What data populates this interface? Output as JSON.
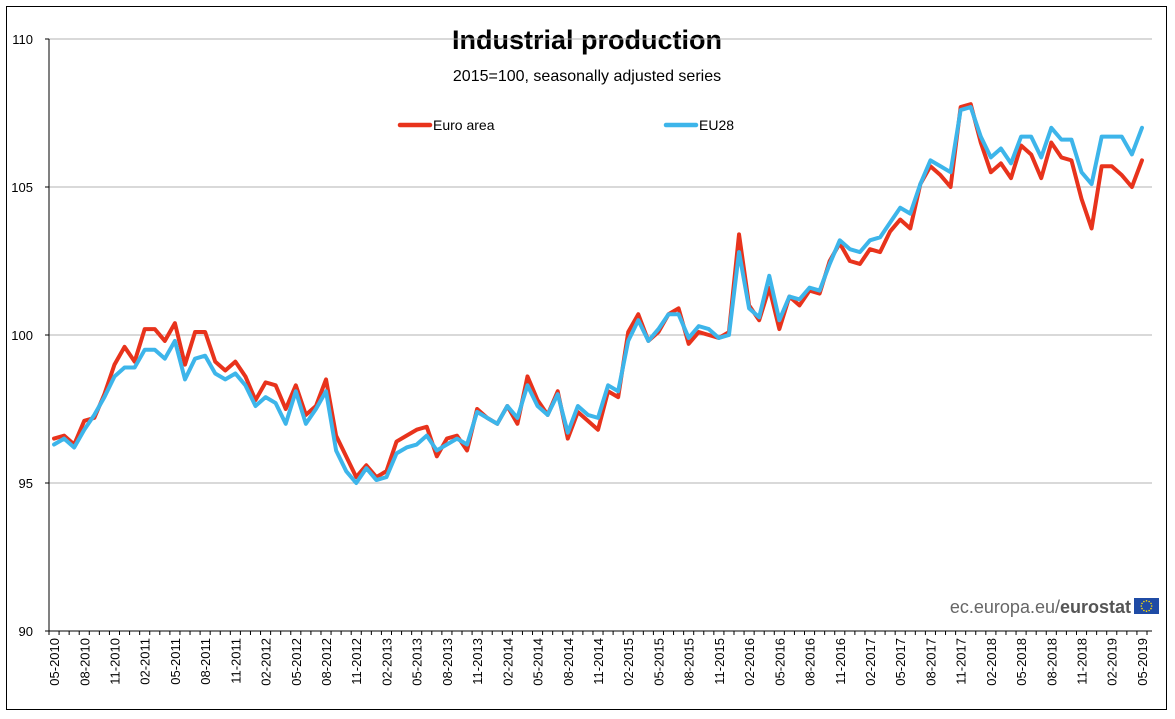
{
  "chart_data": {
    "type": "line",
    "title": "Industrial production",
    "subtitle": "2015=100, seasonally adjusted series",
    "xlabel": "",
    "ylabel": "",
    "ylim": [
      90,
      110
    ],
    "yticks": [
      90,
      95,
      100,
      105,
      110
    ],
    "grid": "horizontal",
    "legend_placement": "top",
    "x_tick_labels": [
      "05-2010",
      "08-2010",
      "11-2010",
      "02-2011",
      "05-2011",
      "08-2011",
      "11-2011",
      "02-2012",
      "05-2012",
      "08-2012",
      "11-2012",
      "02-2013",
      "05-2013",
      "08-2013",
      "11-2013",
      "02-2014",
      "05-2014",
      "08-2014",
      "11-2014",
      "02-2015",
      "05-2015",
      "08-2015",
      "11-2015",
      "02-2016",
      "05-2016",
      "08-2016",
      "11-2016",
      "02-2017",
      "05-2017",
      "08-2017",
      "11-2017",
      "02-2018",
      "05-2018",
      "08-2018",
      "11-2018",
      "02-2019",
      "05-2019"
    ],
    "x_start": "05-2010",
    "series": [
      {
        "name": "Euro area",
        "color": "#e8331c",
        "values": [
          96.5,
          96.6,
          96.3,
          97.1,
          97.2,
          98.0,
          99.0,
          99.6,
          99.1,
          100.2,
          100.2,
          99.8,
          100.4,
          99.0,
          100.1,
          100.1,
          99.1,
          98.8,
          99.1,
          98.6,
          97.8,
          98.4,
          98.3,
          97.5,
          98.3,
          97.3,
          97.6,
          98.5,
          96.6,
          95.9,
          95.2,
          95.6,
          95.2,
          95.4,
          96.4,
          96.6,
          96.8,
          96.9,
          95.9,
          96.5,
          96.6,
          96.1,
          97.5,
          97.2,
          97.0,
          97.6,
          97.0,
          98.6,
          97.8,
          97.3,
          98.1,
          96.5,
          97.4,
          97.1,
          96.8,
          98.1,
          97.9,
          100.1,
          100.7,
          99.8,
          100.1,
          100.7,
          100.9,
          99.7,
          100.1,
          100.0,
          99.9,
          100.1,
          103.4,
          101.0,
          100.5,
          101.6,
          100.2,
          101.3,
          101.0,
          101.5,
          101.4,
          102.5,
          103.1,
          102.5,
          102.4,
          102.9,
          102.8,
          103.5,
          103.9,
          103.6,
          105.1,
          105.7,
          105.4,
          105.0,
          107.7,
          107.8,
          106.5,
          105.5,
          105.8,
          105.3,
          106.4,
          106.1,
          105.3,
          106.5,
          106.0,
          105.9,
          104.6,
          103.6,
          105.7,
          105.7,
          105.4,
          105.0,
          105.9
        ]
      },
      {
        "name": "EU28",
        "color": "#3db5ea",
        "values": [
          96.3,
          96.5,
          96.2,
          96.8,
          97.3,
          97.9,
          98.6,
          98.9,
          98.9,
          99.5,
          99.5,
          99.2,
          99.8,
          98.5,
          99.2,
          99.3,
          98.7,
          98.5,
          98.7,
          98.3,
          97.6,
          97.9,
          97.7,
          97.0,
          98.1,
          97.0,
          97.5,
          98.1,
          96.1,
          95.4,
          95.0,
          95.5,
          95.1,
          95.2,
          96.0,
          96.2,
          96.3,
          96.6,
          96.1,
          96.3,
          96.5,
          96.3,
          97.4,
          97.2,
          97.0,
          97.6,
          97.2,
          98.3,
          97.6,
          97.3,
          98.0,
          96.7,
          97.6,
          97.3,
          97.2,
          98.3,
          98.1,
          99.8,
          100.5,
          99.8,
          100.2,
          100.7,
          100.7,
          99.9,
          100.3,
          100.2,
          99.9,
          100.0,
          102.8,
          100.9,
          100.6,
          102.0,
          100.5,
          101.3,
          101.2,
          101.6,
          101.5,
          102.4,
          103.2,
          102.9,
          102.8,
          103.2,
          103.3,
          103.8,
          104.3,
          104.1,
          105.1,
          105.9,
          105.7,
          105.5,
          107.6,
          107.7,
          106.7,
          106.0,
          106.3,
          105.8,
          106.7,
          106.7,
          106.0,
          107.0,
          106.6,
          106.6,
          105.5,
          105.1,
          106.7,
          106.7,
          106.7,
          106.1,
          107.0
        ]
      }
    ]
  },
  "source": {
    "domain_text": "ec.europa.eu/",
    "brand_text": "eurostat",
    "flag_icon": "eu-flag-icon"
  }
}
